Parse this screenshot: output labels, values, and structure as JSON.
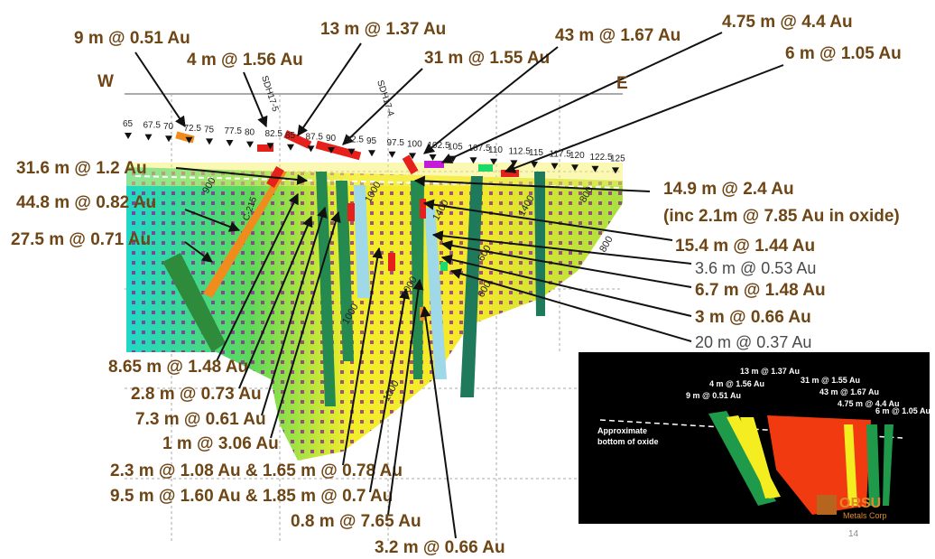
{
  "section": {
    "west": "W",
    "east": "E",
    "holes": [
      "SDH17-5",
      "SDH17-4",
      "C-215"
    ],
    "stations": [
      "65",
      "67.5",
      "70",
      "72.5",
      "75",
      "77.5",
      "80",
      "82.5",
      "85",
      "87.5",
      "90",
      "92.5",
      "95",
      "97.5",
      "100",
      "102.5",
      "105",
      "107.5",
      "110",
      "112.5",
      "115",
      "117.5",
      "120",
      "122.5",
      "125"
    ],
    "contours": [
      "900",
      "1000",
      "1000",
      "1400",
      "1400",
      "800",
      "800",
      "1000",
      "600",
      "600",
      "1000"
    ]
  },
  "callouts": [
    "9 m @ 0.51 Au",
    "4 m @ 1.56 Au",
    "13 m @ 1.37 Au",
    "31 m @ 1.55 Au",
    "43 m @ 1.67 Au",
    "4.75 m @ 4.4 Au",
    "6 m @ 1.05 Au",
    "31.6 m @ 1.2 Au",
    "44.8 m @ 0.82 Au",
    "27.5 m @ 0.71 Au",
    "14.9 m @ 2.4 Au",
    "(inc 2.1m @ 7.85 Au in oxide)",
    "15.4 m @ 1.44 Au",
    "3.6 m @ 0.53 Au",
    "6.7 m @ 1.48 Au",
    "3 m @ 0.66 Au",
    "20 m @ 0.37 Au",
    "8.65 m @ 1.48 Au",
    "2.8 m @ 0.73 Au",
    "7.3 m @ 0.61 Au",
    "1 m @ 3.06 Au",
    "2.3 m @ 1.08 Au & 1.65 m @ 0.78 Au",
    "9.5 m @ 1.60 Au & 1.85 m @ 0.7 Au",
    "0.8 m @ 7.65 Au",
    "3.2 m @ 0.66 Au"
  ],
  "inset": {
    "labels": [
      "13 m @ 1.37 Au",
      "4 m @ 1.56 Au",
      "9 m @ 0.51 Au",
      "31 m @ 1.55 Au",
      "43 m @ 1.67 Au",
      "4.75 m @ 4.4 Au",
      "6 m @ 1.05 Au"
    ],
    "oxide": [
      "Approximate",
      "bottom of oxide"
    ],
    "logo": "ORSU",
    "logo_sub": "Metals Corp"
  },
  "page_number": "14"
}
